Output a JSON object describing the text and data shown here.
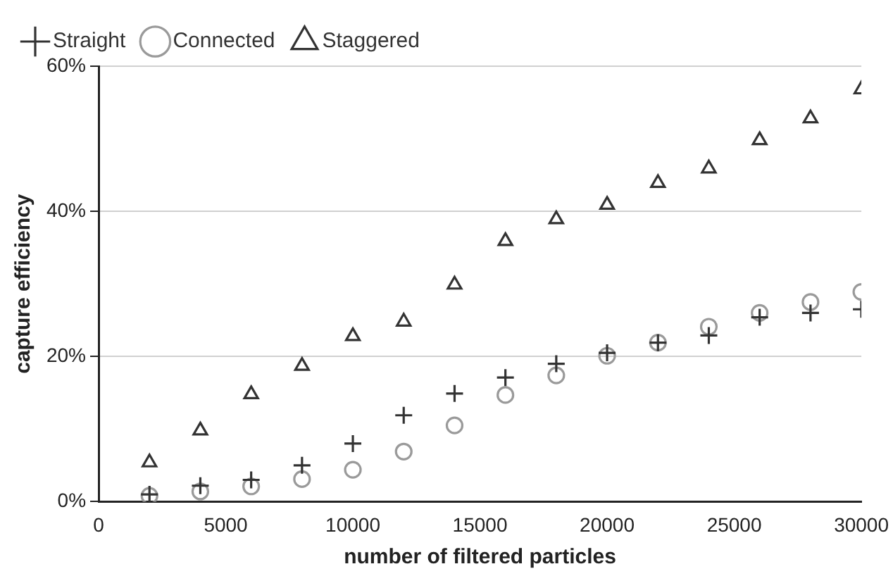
{
  "chart_data": {
    "type": "scatter",
    "xlabel": "number of filtered particles",
    "ylabel": "capture efficiency",
    "x": [
      2000,
      4000,
      6000,
      8000,
      10000,
      12000,
      14000,
      16000,
      18000,
      20000,
      22000,
      24000,
      26000,
      28000,
      30000
    ],
    "series": [
      {
        "name": "Straight",
        "color": "#333333",
        "marker": "cross",
        "values": [
          1.0,
          2.2,
          3.0,
          5.0,
          8.0,
          11.9,
          14.9,
          17.1,
          19.0,
          20.5,
          21.9,
          22.9,
          25.4,
          26.0,
          26.5
        ]
      },
      {
        "name": "Connected",
        "color": "#9a9a9a",
        "marker": "circle",
        "values": [
          0.8,
          1.4,
          2.1,
          3.1,
          4.4,
          6.9,
          10.5,
          14.7,
          17.4,
          20.1,
          21.9,
          24.1,
          26.0,
          27.5,
          28.9
        ]
      },
      {
        "name": "Staggered",
        "color": "#333333",
        "marker": "triangle",
        "values": [
          5.4,
          9.8,
          14.8,
          18.7,
          22.8,
          24.8,
          29.9,
          35.9,
          38.9,
          40.9,
          43.9,
          45.9,
          49.8,
          52.8,
          56.8
        ]
      }
    ],
    "xlim": [
      0,
      30000
    ],
    "xticks": [
      0,
      5000,
      10000,
      15000,
      20000,
      25000,
      30000
    ],
    "ylim": [
      0,
      60
    ],
    "yticks": [
      {
        "value": 0,
        "label": "0%"
      },
      {
        "value": 20,
        "label": "20%"
      },
      {
        "value": 40,
        "label": "40%"
      },
      {
        "value": 60,
        "label": "60%"
      }
    ],
    "grid": "y",
    "legend": "top left"
  }
}
